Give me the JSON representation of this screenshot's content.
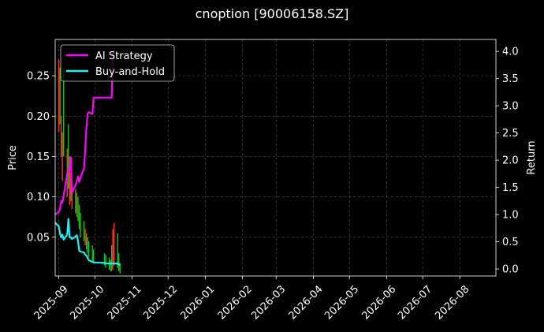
{
  "chart_data": {
    "type": "line",
    "title": "cnoption [90006158.SZ]",
    "ylabel": "Price",
    "y2label": "Return",
    "xlim": [
      "2025-08-29",
      "2026-08-31"
    ],
    "ylim": [
      0.002,
      0.295
    ],
    "y2lim": [
      -0.13,
      4.22
    ],
    "grid": true,
    "legend_position": "top-left",
    "x_ticks": [
      "2025-09",
      "2025-10",
      "2025-11",
      "2025-12",
      "2026-01",
      "2026-02",
      "2026-03",
      "2026-04",
      "2026-05",
      "2026-06",
      "2026-07",
      "2026-08"
    ],
    "y_ticks": [
      "0.05",
      "0.10",
      "0.15",
      "0.20",
      "0.25"
    ],
    "y2_ticks": [
      "0.0",
      "0.5",
      "1.0",
      "1.5",
      "2.0",
      "2.5",
      "3.0",
      "3.5",
      "4.0"
    ],
    "price_bars": [
      {
        "x": "2025-09-01",
        "low": 0.18,
        "high": 0.27,
        "color": "#ff3b1f"
      },
      {
        "x": "2025-09-02",
        "low": 0.19,
        "high": 0.26,
        "color": "#22bb22"
      },
      {
        "x": "2025-09-03",
        "low": 0.15,
        "high": 0.2,
        "color": "#ff3b1f"
      },
      {
        "x": "2025-09-04",
        "low": 0.12,
        "high": 0.18,
        "color": "#ff3b1f"
      },
      {
        "x": "2025-09-05",
        "low": 0.15,
        "high": 0.26,
        "color": "#22bb22"
      },
      {
        "x": "2025-09-08",
        "low": 0.1,
        "high": 0.16,
        "color": "#ff3b1f"
      },
      {
        "x": "2025-09-09",
        "low": 0.11,
        "high": 0.19,
        "color": "#22bb22"
      },
      {
        "x": "2025-09-10",
        "low": 0.09,
        "high": 0.15,
        "color": "#ff3b1f"
      },
      {
        "x": "2025-09-11",
        "low": 0.095,
        "high": 0.13,
        "color": "#22bb22"
      },
      {
        "x": "2025-09-12",
        "low": 0.085,
        "high": 0.12,
        "color": "#ff3b1f"
      },
      {
        "x": "2025-09-15",
        "low": 0.08,
        "high": 0.11,
        "color": "#22bb22"
      },
      {
        "x": "2025-09-16",
        "low": 0.075,
        "high": 0.105,
        "color": "#ff3b1f"
      },
      {
        "x": "2025-09-17",
        "low": 0.07,
        "high": 0.1,
        "color": "#22bb22"
      },
      {
        "x": "2025-09-18",
        "low": 0.06,
        "high": 0.09,
        "color": "#22bb22"
      },
      {
        "x": "2025-09-19",
        "low": 0.05,
        "high": 0.08,
        "color": "#22bb22"
      },
      {
        "x": "2025-09-22",
        "low": 0.045,
        "high": 0.07,
        "color": "#22bb22"
      },
      {
        "x": "2025-09-23",
        "low": 0.04,
        "high": 0.06,
        "color": "#ff3b1f"
      },
      {
        "x": "2025-09-24",
        "low": 0.035,
        "high": 0.055,
        "color": "#22bb22"
      },
      {
        "x": "2025-09-25",
        "low": 0.03,
        "high": 0.05,
        "color": "#22bb22"
      },
      {
        "x": "2025-09-26",
        "low": 0.025,
        "high": 0.045,
        "color": "#22bb22"
      },
      {
        "x": "2025-09-29",
        "low": 0.02,
        "high": 0.04,
        "color": "#22bb22"
      },
      {
        "x": "2025-09-30",
        "low": 0.018,
        "high": 0.035,
        "color": "#22bb22"
      },
      {
        "x": "2025-10-09",
        "low": 0.015,
        "high": 0.03,
        "color": "#22bb22"
      },
      {
        "x": "2025-10-10",
        "low": 0.012,
        "high": 0.028,
        "color": "#22bb22"
      },
      {
        "x": "2025-10-13",
        "low": 0.01,
        "high": 0.025,
        "color": "#22bb22"
      },
      {
        "x": "2025-10-14",
        "low": 0.008,
        "high": 0.022,
        "color": "#22bb22"
      },
      {
        "x": "2025-10-15",
        "low": 0.008,
        "high": 0.04,
        "color": "#22bb22"
      },
      {
        "x": "2025-10-16",
        "low": 0.01,
        "high": 0.06,
        "color": "#ff3b1f"
      },
      {
        "x": "2025-10-17",
        "low": 0.015,
        "high": 0.068,
        "color": "#ff3b1f"
      },
      {
        "x": "2025-10-20",
        "low": 0.012,
        "high": 0.055,
        "color": "#22bb22"
      },
      {
        "x": "2025-10-21",
        "low": 0.008,
        "high": 0.03,
        "color": "#22bb22"
      },
      {
        "x": "2025-10-22",
        "low": 0.005,
        "high": 0.018,
        "color": "#22bb22"
      }
    ],
    "series": [
      {
        "name": "AI Strategy",
        "color": "#ff00ff",
        "axis": "right",
        "x": [
          "2025-08-29",
          "2025-09-01",
          "2025-09-02",
          "2025-09-03",
          "2025-09-04",
          "2025-09-05",
          "2025-09-08",
          "2025-09-09",
          "2025-09-10",
          "2025-09-11",
          "2025-09-12",
          "2025-09-15",
          "2025-09-16",
          "2025-09-17",
          "2025-09-18",
          "2025-09-19",
          "2025-09-22",
          "2025-09-23",
          "2025-09-24",
          "2025-09-25",
          "2025-09-26",
          "2025-09-29",
          "2025-09-30",
          "2025-10-09",
          "2025-10-10",
          "2025-10-13",
          "2025-10-14",
          "2025-10-15",
          "2025-10-16",
          "2025-10-17"
        ],
        "values": [
          1.0,
          1.05,
          1.1,
          1.25,
          1.22,
          1.35,
          1.75,
          1.78,
          1.85,
          2.05,
          1.4,
          1.55,
          1.62,
          1.7,
          1.6,
          1.68,
          1.85,
          2.2,
          2.6,
          2.85,
          2.88,
          2.85,
          3.15,
          3.15,
          3.15,
          3.15,
          3.15,
          3.15,
          3.95,
          4.05
        ]
      },
      {
        "name": "Buy-and-Hold",
        "color": "#19f2f2",
        "axis": "right",
        "x": [
          "2025-08-29",
          "2025-09-01",
          "2025-09-02",
          "2025-09-03",
          "2025-09-04",
          "2025-09-05",
          "2025-09-08",
          "2025-09-09",
          "2025-09-10",
          "2025-09-11",
          "2025-09-12",
          "2025-09-15",
          "2025-09-16",
          "2025-09-17",
          "2025-09-18",
          "2025-09-19",
          "2025-09-22",
          "2025-09-23",
          "2025-09-24",
          "2025-09-25",
          "2025-09-26",
          "2025-09-29",
          "2025-09-30",
          "2025-10-09",
          "2025-10-10",
          "2025-10-13",
          "2025-10-14",
          "2025-10-15",
          "2025-10-16",
          "2025-10-17",
          "2025-10-20",
          "2025-10-21",
          "2025-10-22"
        ],
        "values": [
          0.85,
          0.78,
          0.65,
          0.58,
          0.63,
          0.54,
          0.63,
          0.92,
          0.58,
          0.58,
          0.55,
          0.6,
          0.62,
          0.52,
          0.33,
          0.32,
          0.3,
          0.26,
          0.25,
          0.2,
          0.16,
          0.13,
          0.12,
          0.11,
          0.1,
          0.1,
          0.1,
          0.1,
          0.1,
          0.1,
          0.1,
          0.08,
          0.08
        ]
      }
    ]
  }
}
